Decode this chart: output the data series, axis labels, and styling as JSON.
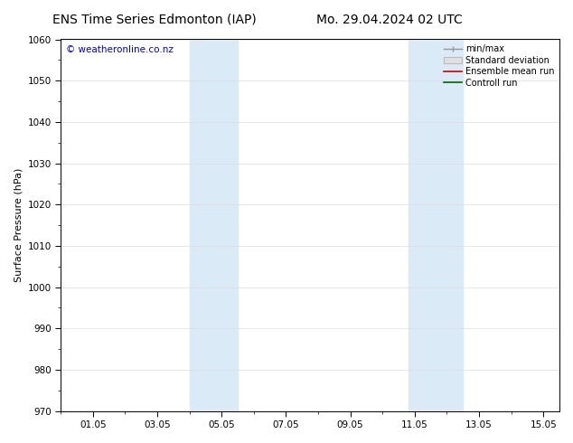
{
  "title": "ENS Time Series Edmonton (IAP)",
  "title2": "Mo. 29.04.2024 02 UTC",
  "xlabel": "",
  "ylabel": "Surface Pressure (hPa)",
  "watermark": "© weatheronline.co.nz",
  "ylim": [
    970,
    1060
  ],
  "yticks": [
    970,
    980,
    990,
    1000,
    1010,
    1020,
    1030,
    1040,
    1050,
    1060
  ],
  "xtick_labels": [
    "01.05",
    "03.05",
    "05.05",
    "07.05",
    "09.05",
    "11.05",
    "13.05",
    "15.05"
  ],
  "xtick_positions": [
    1,
    3,
    5,
    7,
    9,
    11,
    13,
    15
  ],
  "xmin": 0,
  "xmax": 15.5,
  "shaded_bands": [
    {
      "xmin": 4.0,
      "xmax": 5.5,
      "color": "#daeaf7"
    },
    {
      "xmin": 10.8,
      "xmax": 12.5,
      "color": "#daeaf7"
    }
  ],
  "legend_items": [
    {
      "label": "min/max",
      "color": "#999999",
      "style": "minmax"
    },
    {
      "label": "Standard deviation",
      "color": "#bbbbbb",
      "style": "box"
    },
    {
      "label": "Ensemble mean run",
      "color": "#cc0000",
      "style": "line"
    },
    {
      "label": "Controll run",
      "color": "#006600",
      "style": "line"
    }
  ],
  "bg_color": "#ffffff",
  "plot_bg_color": "#ffffff",
  "grid_color": "#dddddd",
  "title_fontsize": 10,
  "tick_fontsize": 7.5,
  "ylabel_fontsize": 8,
  "legend_fontsize": 7,
  "watermark_fontsize": 7.5
}
